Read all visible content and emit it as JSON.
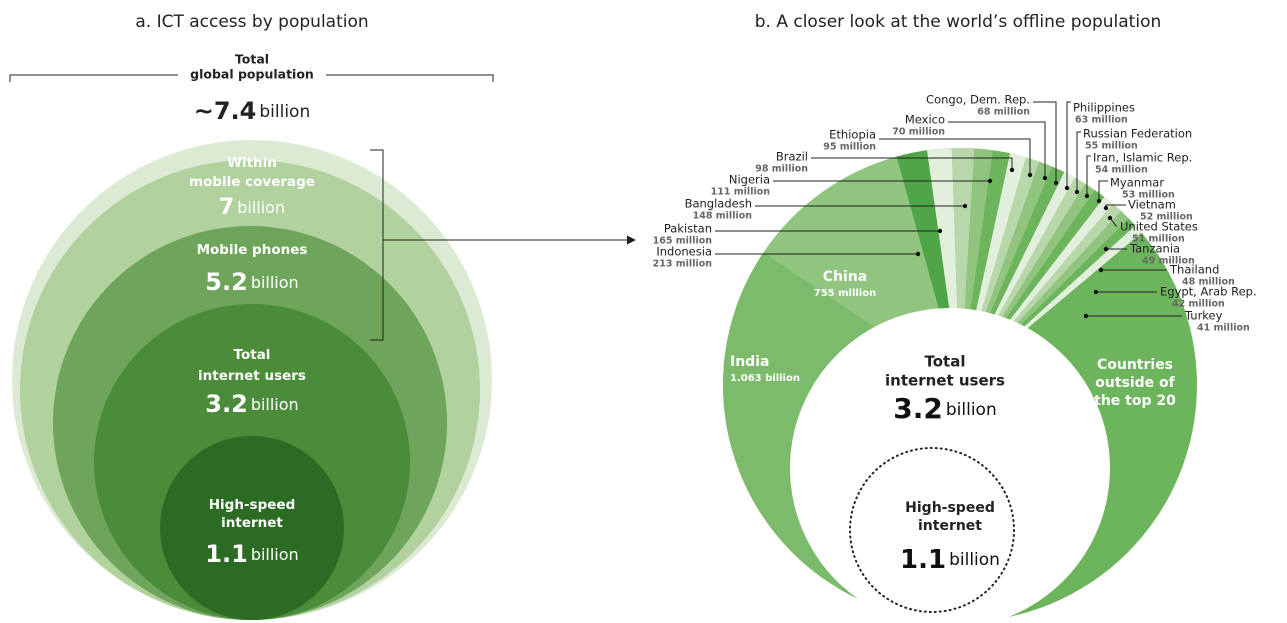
{
  "panel_a": {
    "title": "a. ICT access by population",
    "total": {
      "label": [
        "Total",
        "global population"
      ],
      "value": "~7.4",
      "unit": "billion"
    },
    "circles": [
      {
        "label": [
          "Within",
          "mobile coverage"
        ],
        "value": "7",
        "unit": "billion"
      },
      {
        "label": [
          "Mobile phones"
        ],
        "value": "5.2",
        "unit": "billion"
      },
      {
        "label": [
          "Total",
          "internet users"
        ],
        "value": "3.2",
        "unit": "billion"
      },
      {
        "label": [
          "High-speed",
          "internet"
        ],
        "value": "1.1",
        "unit": "billion"
      }
    ]
  },
  "panel_b": {
    "title": "b. A closer look at the world’s offline population",
    "india": {
      "name": "India",
      "value": "1.063 billion"
    },
    "china": {
      "name": "China",
      "value": "755 million"
    },
    "countries": [
      {
        "name": "Indonesia",
        "value": "213 million"
      },
      {
        "name": "Pakistan",
        "value": "165 million"
      },
      {
        "name": "Bangladesh",
        "value": "148 million"
      },
      {
        "name": "Nigeria",
        "value": "111 million"
      },
      {
        "name": "Brazil",
        "value": "98 million"
      },
      {
        "name": "Ethiopia",
        "value": "95 million"
      },
      {
        "name": "Mexico",
        "value": "70 million"
      },
      {
        "name": "Congo, Dem. Rep.",
        "value": "68 million"
      },
      {
        "name": "Philippines",
        "value": "63 million"
      },
      {
        "name": "Russian Federation",
        "value": "55 million"
      },
      {
        "name": "Iran, Islamic Rep.",
        "value": "54 million"
      },
      {
        "name": "Myanmar",
        "value": "53 million"
      },
      {
        "name": "Vietnam",
        "value": "52 million"
      },
      {
        "name": "United States",
        "value": "51 million"
      },
      {
        "name": "Tanzania",
        "value": "49 million"
      },
      {
        "name": "Thailand",
        "value": "48 million"
      },
      {
        "name": "Egypt, Arab Rep.",
        "value": "42 million"
      },
      {
        "name": "Turkey",
        "value": "41 million"
      }
    ],
    "outside": [
      "Countries",
      "outside of",
      "the top 20"
    ],
    "internet": {
      "label": [
        "Total",
        "internet users"
      ],
      "value": "3.2",
      "unit": "billion"
    },
    "highspeed": {
      "label": [
        "High-speed",
        "internet"
      ],
      "value": "1.1",
      "unit": "billion"
    }
  }
}
